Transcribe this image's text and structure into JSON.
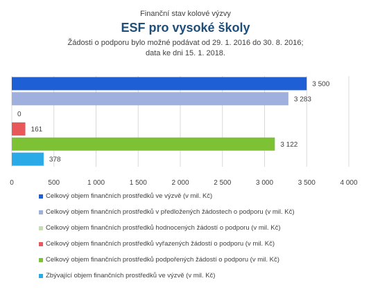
{
  "chart_data": {
    "type": "bar",
    "orientation": "horizontal",
    "title_lines": [
      "Finanční stav kolové výzvy",
      "ESF pro vysoké školy",
      "Žádosti o podporu bylo možné  podávat od 29. 1. 2016 do 30. 8. 2016;",
      "data ke dni 15. 1. 2018."
    ],
    "xlim": [
      0,
      4000
    ],
    "x_ticks": [
      0,
      500,
      1000,
      1500,
      2000,
      2500,
      3000,
      3500,
      4000
    ],
    "x_tick_labels": [
      "0",
      "500",
      "1 000",
      "1 500",
      "2 000",
      "2 500",
      "3 000",
      "3 500",
      "4 000"
    ],
    "grid": true,
    "legend_position": "bottom",
    "series": [
      {
        "name": "Celkový objem finančních prostředků ve výzvě (v mil. Kč)",
        "value": 3500,
        "label": "3 500",
        "color": "#1F5FD6"
      },
      {
        "name": "Celkový objem finančních prostředků v předložených žádostech o podporu (v mil. Kč)",
        "value": 3283,
        "label": "3 283",
        "color": "#9FB0DE"
      },
      {
        "name": "Celkový objem finančních prostředků hodnocených žádostí o podporu (v mil. Kč)",
        "value": 0,
        "label": "0",
        "color": "#C6DDB4"
      },
      {
        "name": "Celkový objem finančních prostředků vyřazených žádostí o podporu (v mil. Kč)",
        "value": 161,
        "label": "161",
        "color": "#E8575A"
      },
      {
        "name": "Celkový objem finančních prostředků podpořených žádostí o podporu (v mil. Kč)",
        "value": 3122,
        "label": "3 122",
        "color": "#7CC234"
      },
      {
        "name": "Zbývající objem finančních prostředků ve výzvě (v mil. Kč)",
        "value": 378,
        "label": "378",
        "color": "#2BAAE8"
      }
    ]
  }
}
